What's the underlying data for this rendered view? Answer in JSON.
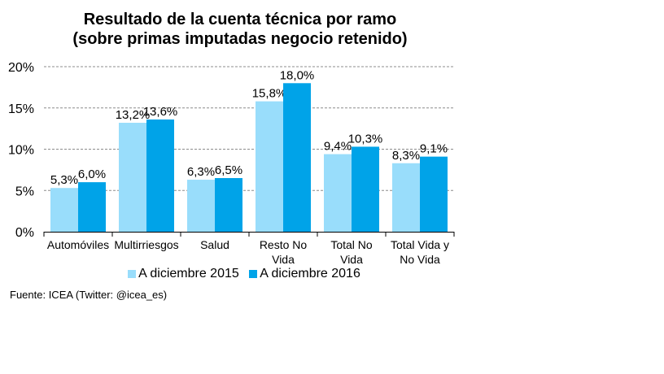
{
  "chart_data": {
    "type": "bar",
    "title": "Resultado de la cuenta técnica por ramo",
    "subtitle": "(sobre primas imputadas negocio retenido)",
    "categories": [
      "Automóviles",
      "Multirriesgos",
      "Salud",
      "Resto No Vida",
      "Total No Vida",
      "Total Vida y No Vida"
    ],
    "category_lines": [
      [
        "Automóviles"
      ],
      [
        "Multirriesgos"
      ],
      [
        "Salud"
      ],
      [
        "Resto No",
        "Vida"
      ],
      [
        "Total No",
        "Vida"
      ],
      [
        "Total Vida y",
        "No Vida"
      ]
    ],
    "series": [
      {
        "name": "A diciembre 2015",
        "color": "#99DDFB",
        "values": [
          5.3,
          13.2,
          6.3,
          15.8,
          9.4,
          8.3
        ],
        "labels": [
          "5,3%",
          "13,2%",
          "6,3%",
          "15,8%",
          "9,4%",
          "8,3%"
        ]
      },
      {
        "name": "A diciembre 2016",
        "color": "#00A3E8",
        "values": [
          6.0,
          13.6,
          6.5,
          18.0,
          10.3,
          9.1
        ],
        "labels": [
          "6,0%",
          "13,6%",
          "6,5%",
          "18,0%",
          "10,3%",
          "9,1%"
        ]
      }
    ],
    "yticks": [
      0,
      5,
      10,
      15,
      20
    ],
    "ytick_labels": [
      "0%",
      "5%",
      "10%",
      "15%",
      "20%"
    ],
    "ylim": [
      0,
      20
    ],
    "xlabel": "",
    "ylabel": "",
    "grid": true,
    "legend_position": "bottom"
  },
  "source": "Fuente: ICEA (Twitter:  @icea_es)"
}
